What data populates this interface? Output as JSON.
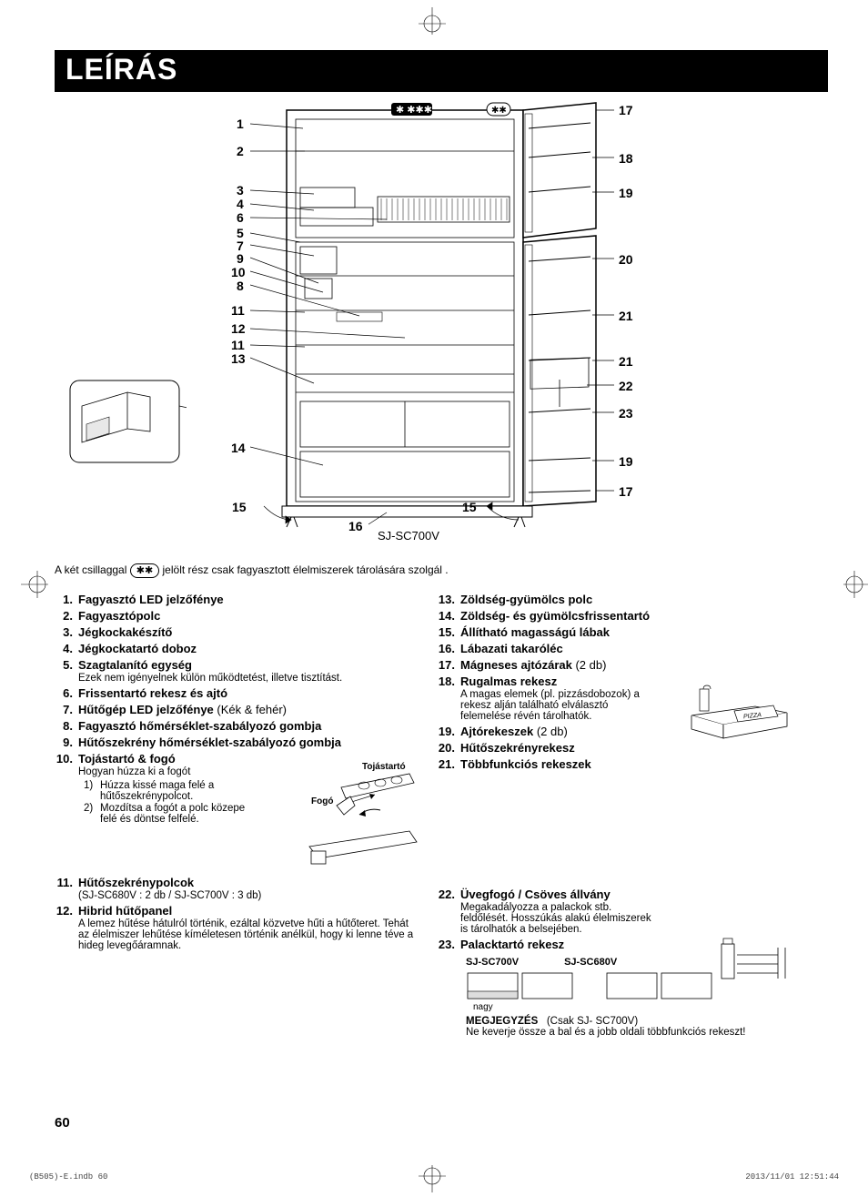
{
  "title": "LEÍRÁS",
  "model_label": "SJ-SC700V",
  "star_note": "A két csillaggal",
  "star_note_after": "jelölt rész csak fagyasztott élelmiszerek tárolására szolgál .",
  "page_number": "60",
  "footer_left": "(B505)-E.indb   60",
  "footer_right": "2013/11/01   12:51:44",
  "diagram": {
    "left_labels": [
      "1",
      "2",
      "3",
      "4",
      "6",
      "5",
      "7",
      "9",
      "10",
      "8",
      "11",
      "12",
      "11",
      "13",
      "14",
      "15",
      "16"
    ],
    "right_labels": [
      "17",
      "18",
      "19",
      "20",
      "21",
      "21",
      "22",
      "23",
      "19",
      "17"
    ],
    "center_label_a": "15"
  },
  "egg": {
    "top": "Tojástartó",
    "mid": "Fogó"
  },
  "pizza_label": "PIZZA",
  "multi": {
    "model_a": "SJ-SC700V",
    "model_b": "SJ-SC680V",
    "nagy": "nagy",
    "note_bold": "MEGJEGYZÉS",
    "note_paren": "(Csak SJ- SC700V)",
    "note_text": "Ne keverje össze a bal és a jobb oldali többfunkciós rekeszt!"
  },
  "left_items": [
    {
      "n": "1.",
      "t": "Fagyasztó LED jelzőfénye"
    },
    {
      "n": "2.",
      "t": "Fagyasztópolc"
    },
    {
      "n": "3.",
      "t": "Jégkockakészítő"
    },
    {
      "n": "4.",
      "t": "Jégkockatartó doboz"
    },
    {
      "n": "5.",
      "t": "Szagtalanító egység",
      "note": "Ezek nem igényelnek külön működtetést, illetve tisztítást."
    },
    {
      "n": "6.",
      "t": "Frissentartó rekesz és ajtó"
    },
    {
      "n": "7.",
      "t": "Hűtőgép LED jelzőfénye",
      "sub": " (Kék & fehér)"
    },
    {
      "n": "8.",
      "t": "Fagyasztó hőmérséklet-szabályozó gombja"
    },
    {
      "n": "9.",
      "t": "Hűtőszekrény hőmérséklet-szabályozó gombja"
    },
    {
      "n": "10.",
      "t": "Tojástartó & fogó",
      "note": "Hogyan húzza ki a fogót"
    },
    {
      "n": "11.",
      "t": "Hűtőszekrénypolcok",
      "note": "(SJ-SC680V : 2 db / SJ-SC700V : 3 db)"
    },
    {
      "n": "12.",
      "t": "Hibrid hűtőpanel",
      "note": "A lemez hűtése hátulról történik, ezáltal közvetve hűti a hűtőteret. Tehát az élelmiszer lehűtése kíméletesen történik anélkül, hogy ki lenne téve a hideg levegőáramnak."
    }
  ],
  "sub10": [
    {
      "n": "1)",
      "t": "Húzza kissé maga felé a hűtőszekrénypolcot."
    },
    {
      "n": "2)",
      "t": "Mozdítsa a fogót a polc közepe felé és döntse felfelé."
    }
  ],
  "right_items": [
    {
      "n": "13.",
      "t": "Zöldség-gyümölcs polc"
    },
    {
      "n": "14.",
      "t": "Zöldség- és gyümölcsfrissentartó"
    },
    {
      "n": "15.",
      "t": "Állítható magasságú lábak"
    },
    {
      "n": "16.",
      "t": "Lábazati takaróléc"
    },
    {
      "n": "17.",
      "t": "Mágneses ajtózárak",
      "sub": " (2 db)"
    },
    {
      "n": "18.",
      "t": "Rugalmas rekesz",
      "note": "A magas elemek (pl. pizzásdobozok) a rekesz alján található elválasztó felemelése révén tárolhatók."
    },
    {
      "n": "19.",
      "t": "Ajtórekeszek",
      "sub": " (2 db)"
    },
    {
      "n": "20.",
      "t": "Hűtőszekrényrekesz"
    },
    {
      "n": "21.",
      "t": "Többfunkciós rekeszek"
    },
    {
      "n": "22.",
      "t": "Üvegfogó / Csöves állvány",
      "note": "Megakadályozza a palackok stb. feldőlését. Hosszúkás alakú élelmiszerek is tárolhatók a belsejében."
    },
    {
      "n": "23.",
      "t": "Palacktartó rekesz"
    }
  ]
}
